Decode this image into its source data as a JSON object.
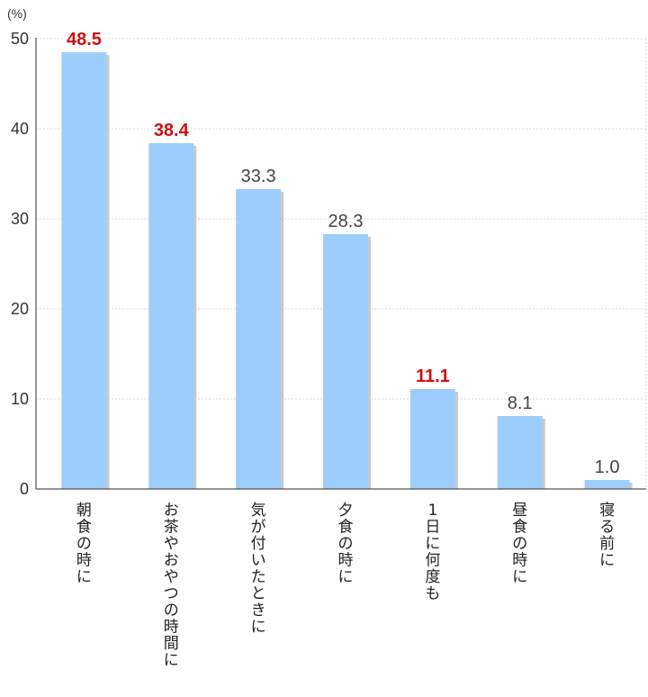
{
  "chart_data": {
    "type": "bar",
    "ylabel": "(%)",
    "ylim": [
      0,
      50
    ],
    "yticks": [
      0,
      10,
      20,
      30,
      40,
      50
    ],
    "grid": true,
    "categories": [
      "朝食の時に",
      "お茶やおやつの時間に",
      "気が付いたときに",
      "夕食の時に",
      "1日に何度も",
      "昼食の時に",
      "寝る前に"
    ],
    "values": [
      48.5,
      38.4,
      33.3,
      28.3,
      11.1,
      8.1,
      1.0
    ],
    "value_labels": [
      "48.5",
      "38.4",
      "33.3",
      "28.3",
      "11.1",
      "8.1",
      "1.0"
    ],
    "highlighted": [
      true,
      true,
      false,
      false,
      true,
      false,
      false
    ],
    "colors": {
      "bar": "#9dcdfb",
      "bar_shadow": "#c9c9c9",
      "highlight_label": "#cc1111",
      "normal_label": "#444444",
      "grid": "#d8d8d8",
      "axis": "#555555"
    }
  }
}
